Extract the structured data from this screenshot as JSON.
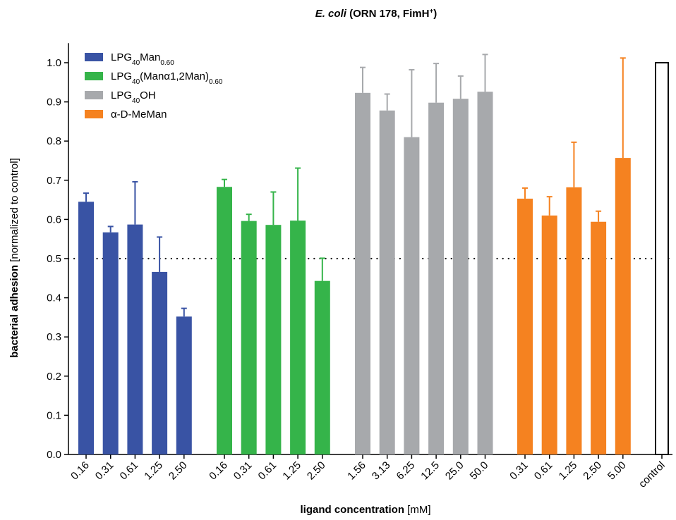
{
  "chart_data": {
    "type": "bar",
    "title": {
      "italic": "E. coli",
      "rest": " (ORN 178, FimH",
      "sup": "+",
      "close": ")"
    },
    "xlabel": {
      "bold": "ligand concentration",
      "unit": " [mM]"
    },
    "ylabel": {
      "bold": "bacterial adhesion",
      "unit": " [normalized to control]"
    },
    "ylim": [
      0.0,
      1.05
    ],
    "yticks": [
      "0.0",
      "0.1",
      "0.2",
      "0.3",
      "0.4",
      "0.5",
      "0.6",
      "0.7",
      "0.8",
      "0.9",
      "1.0"
    ],
    "reference_line": {
      "y": 0.5,
      "style": "dotted"
    },
    "legend_position": "top-left",
    "series": [
      {
        "legend": {
          "base": "LPG",
          "sub": "40",
          "mid": "Man",
          "sub2": "0.60",
          "tail": ""
        },
        "color": "#3953a4",
        "categories": [
          "0.16",
          "0.31",
          "0.61",
          "1.25",
          "2.50"
        ],
        "values": [
          0.645,
          0.567,
          0.587,
          0.466,
          0.352
        ],
        "errors": [
          0.022,
          0.015,
          0.109,
          0.089,
          0.021
        ]
      },
      {
        "legend": {
          "base": "LPG",
          "sub": "40",
          "mid": "(Manα1,2Man)",
          "sub2": "0.60",
          "tail": ""
        },
        "color": "#35b44a",
        "categories": [
          "0.16",
          "0.31",
          "0.61",
          "1.25",
          "2.50"
        ],
        "values": [
          0.683,
          0.596,
          0.586,
          0.597,
          0.443
        ],
        "errors": [
          0.019,
          0.017,
          0.084,
          0.134,
          0.058
        ]
      },
      {
        "legend": {
          "base": "LPG",
          "sub": "40",
          "mid": "OH",
          "sub2": "",
          "tail": ""
        },
        "color": "#a7a9ac",
        "categories": [
          "1.56",
          "3.13",
          "6.25",
          "12.5",
          "25.0",
          "50.0"
        ],
        "values": [
          0.923,
          0.878,
          0.81,
          0.898,
          0.908,
          0.926
        ],
        "errors": [
          0.065,
          0.042,
          0.172,
          0.1,
          0.058,
          0.095
        ]
      },
      {
        "legend": {
          "base": "α-D-MeMan",
          "sub": "",
          "mid": "",
          "sub2": "",
          "tail": ""
        },
        "color": "#f58220",
        "categories": [
          "0.31",
          "0.61",
          "1.25",
          "2.50",
          "5.00"
        ],
        "values": [
          0.653,
          0.61,
          0.682,
          0.594,
          0.757
        ],
        "errors": [
          0.027,
          0.048,
          0.115,
          0.027,
          0.255
        ]
      }
    ],
    "control": {
      "label": "control",
      "value": 1.0,
      "color": "#ffffff",
      "edge": "#000000"
    }
  }
}
